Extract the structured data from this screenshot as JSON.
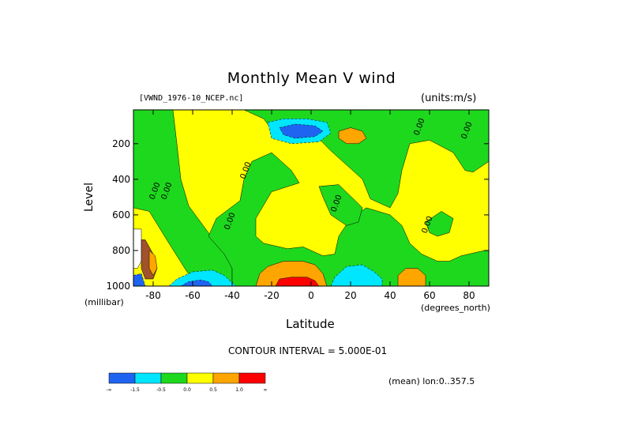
{
  "chart_data": {
    "type": "heatmap",
    "title": "Monthly Mean V wind",
    "dataset_label": "[VWND_1976-10_NCEP.nc]",
    "units_label": "(units:m/s)",
    "xlabel": "Latitude",
    "x_units": "(degrees_north)",
    "ylabel": "Level",
    "y_units": "(millibar)",
    "xlim": [
      -90,
      90
    ],
    "ylim": [
      1000,
      10
    ],
    "x_ticks": [
      -80,
      -60,
      -40,
      -20,
      0,
      20,
      40,
      60,
      80
    ],
    "x_tick_labels": [
      "-80",
      "-60",
      "-40",
      "-20",
      "0",
      "20",
      "40",
      "60",
      "80"
    ],
    "y_ticks": [
      200,
      400,
      600,
      800,
      1000
    ],
    "y_tick_labels": [
      "200",
      "400",
      "600",
      "800",
      "1000"
    ],
    "contour_interval_text": "CONTOUR INTERVAL = 5.000E-01",
    "subset_text": "(mean) lon:0..357.5",
    "contour_labels": [
      {
        "text": "0.00",
        "lat": 56,
        "level": 110
      },
      {
        "text": "0.00",
        "lat": 80,
        "level": 130
      },
      {
        "text": "0.00",
        "lat": -32,
        "level": 355
      },
      {
        "text": "0.00",
        "lat": -78,
        "level": 470
      },
      {
        "text": "0.00",
        "lat": -72,
        "level": 470
      },
      {
        "text": "0.00",
        "lat": 14,
        "level": 540
      },
      {
        "text": "0.00",
        "lat": -40,
        "level": 640
      },
      {
        "text": "0.00",
        "lat": 60,
        "level": 660
      }
    ],
    "legend": {
      "levels": [
        "-∞",
        "-1.5",
        "-0.5",
        "0.0",
        "0.5",
        "1.0",
        "∞"
      ],
      "colors": [
        "#1e64f0",
        "#00e6ff",
        "#1ed81e",
        "#ffff00",
        "#ffa500",
        "#ff0000"
      ]
    },
    "regions": [
      {
        "color": "#1ed81e",
        "points": [
          [
            -90,
            10
          ],
          [
            -70,
            10
          ],
          [
            -68,
            200
          ],
          [
            -66,
            400
          ],
          [
            -62,
            550
          ],
          [
            -52,
            700
          ],
          [
            -44,
            800
          ],
          [
            -40,
            900
          ],
          [
            -40,
            1000
          ],
          [
            -58,
            1000
          ],
          [
            -64,
            900
          ],
          [
            -72,
            760
          ],
          [
            -82,
            580
          ],
          [
            -90,
            560
          ]
        ]
      },
      {
        "color": "#1ed81e",
        "points": [
          [
            -30,
            300
          ],
          [
            -20,
            250
          ],
          [
            -10,
            350
          ],
          [
            -6,
            420
          ],
          [
            -20,
            470
          ],
          [
            -28,
            620
          ],
          [
            -28,
            720
          ],
          [
            -24,
            760
          ],
          [
            -12,
            790
          ],
          [
            -4,
            780
          ],
          [
            6,
            830
          ],
          [
            12,
            820
          ],
          [
            14,
            720
          ],
          [
            20,
            620
          ],
          [
            28,
            560
          ],
          [
            40,
            600
          ],
          [
            46,
            660
          ],
          [
            50,
            760
          ],
          [
            56,
            820
          ],
          [
            64,
            860
          ],
          [
            70,
            860
          ],
          [
            76,
            830
          ],
          [
            88,
            800
          ],
          [
            90,
            800
          ],
          [
            90,
            1000
          ],
          [
            -40,
            1000
          ],
          [
            -40,
            900
          ],
          [
            -44,
            820
          ],
          [
            -52,
            720
          ],
          [
            -48,
            620
          ],
          [
            -36,
            520
          ],
          [
            -34,
            400
          ]
        ]
      },
      {
        "color": "#1ed81e",
        "points": [
          [
            -34,
            10
          ],
          [
            -20,
            10
          ],
          [
            0,
            10
          ],
          [
            20,
            10
          ],
          [
            40,
            10
          ],
          [
            60,
            10
          ],
          [
            90,
            10
          ],
          [
            90,
            300
          ],
          [
            82,
            360
          ],
          [
            78,
            350
          ],
          [
            72,
            250
          ],
          [
            60,
            180
          ],
          [
            50,
            200
          ],
          [
            46,
            350
          ],
          [
            44,
            480
          ],
          [
            40,
            560
          ],
          [
            30,
            510
          ],
          [
            26,
            400
          ],
          [
            18,
            320
          ],
          [
            10,
            240
          ],
          [
            2,
            150
          ],
          [
            -8,
            160
          ],
          [
            -20,
            120
          ],
          [
            -24,
            60
          ]
        ]
      },
      {
        "color": "#1ed81e",
        "points": [
          [
            4,
            440
          ],
          [
            14,
            430
          ],
          [
            26,
            560
          ],
          [
            24,
            640
          ],
          [
            18,
            660
          ],
          [
            10,
            600
          ],
          [
            6,
            500
          ]
        ]
      },
      {
        "color": "#1ed81e",
        "points": [
          [
            58,
            640
          ],
          [
            66,
            580
          ],
          [
            72,
            620
          ],
          [
            70,
            700
          ],
          [
            64,
            720
          ],
          [
            60,
            700
          ]
        ]
      },
      {
        "color": "#00e6ff",
        "points": [
          [
            -22,
            80
          ],
          [
            -14,
            60
          ],
          [
            -2,
            60
          ],
          [
            8,
            80
          ],
          [
            10,
            140
          ],
          [
            4,
            190
          ],
          [
            -10,
            200
          ],
          [
            -20,
            170
          ]
        ]
      },
      {
        "color": "#1e64f0",
        "points": [
          [
            -16,
            110
          ],
          [
            -8,
            90
          ],
          [
            2,
            100
          ],
          [
            6,
            130
          ],
          [
            2,
            160
          ],
          [
            -8,
            170
          ],
          [
            -14,
            150
          ]
        ]
      },
      {
        "color": "#ffa500",
        "points": [
          [
            14,
            130
          ],
          [
            20,
            110
          ],
          [
            26,
            130
          ],
          [
            28,
            170
          ],
          [
            24,
            200
          ],
          [
            18,
            200
          ],
          [
            14,
            170
          ]
        ]
      },
      {
        "color": "#ffa500",
        "points": [
          [
            -28,
            1000
          ],
          [
            -26,
            930
          ],
          [
            -22,
            890
          ],
          [
            -14,
            860
          ],
          [
            -4,
            860
          ],
          [
            2,
            880
          ],
          [
            6,
            930
          ],
          [
            8,
            1000
          ]
        ]
      },
      {
        "color": "#ff0000",
        "points": [
          [
            -18,
            1000
          ],
          [
            -16,
            960
          ],
          [
            -10,
            950
          ],
          [
            -2,
            950
          ],
          [
            2,
            970
          ],
          [
            4,
            1000
          ]
        ]
      },
      {
        "color": "#00e6ff",
        "points": [
          [
            10,
            1000
          ],
          [
            12,
            950
          ],
          [
            18,
            890
          ],
          [
            26,
            880
          ],
          [
            32,
            920
          ],
          [
            36,
            960
          ],
          [
            36,
            1000
          ]
        ]
      },
      {
        "color": "#00e6ff",
        "points": [
          [
            -72,
            1000
          ],
          [
            -68,
            960
          ],
          [
            -60,
            920
          ],
          [
            -50,
            910
          ],
          [
            -44,
            940
          ],
          [
            -40,
            980
          ],
          [
            -38,
            1000
          ]
        ]
      },
      {
        "color": "#1e64f0",
        "points": [
          [
            -66,
            1000
          ],
          [
            -62,
            975
          ],
          [
            -56,
            965
          ],
          [
            -52,
            975
          ],
          [
            -50,
            1000
          ]
        ]
      },
      {
        "color": "#ffa500",
        "points": [
          [
            44,
            1000
          ],
          [
            44,
            940
          ],
          [
            48,
            900
          ],
          [
            54,
            900
          ],
          [
            58,
            940
          ],
          [
            58,
            1000
          ]
        ]
      },
      {
        "color": "#1e64f0",
        "points": [
          [
            -90,
            940
          ],
          [
            -86,
            930
          ],
          [
            -84,
            1000
          ],
          [
            -90,
            1000
          ]
        ]
      },
      {
        "color": "#ffffff",
        "points": [
          [
            -90,
            680
          ],
          [
            -86,
            680
          ],
          [
            -86,
            860
          ],
          [
            -88,
            900
          ],
          [
            -90,
            900
          ]
        ]
      },
      {
        "color": "#a0522d",
        "points": [
          [
            -86,
            740
          ],
          [
            -84,
            740
          ],
          [
            -80,
            820
          ],
          [
            -78,
            900
          ],
          [
            -80,
            960
          ],
          [
            -84,
            960
          ],
          [
            -86,
            900
          ]
        ]
      },
      {
        "color": "#ffa500",
        "points": [
          [
            -82,
            800
          ],
          [
            -79,
            830
          ],
          [
            -78,
            900
          ],
          [
            -80,
            940
          ],
          [
            -82,
            900
          ]
        ]
      }
    ]
  }
}
